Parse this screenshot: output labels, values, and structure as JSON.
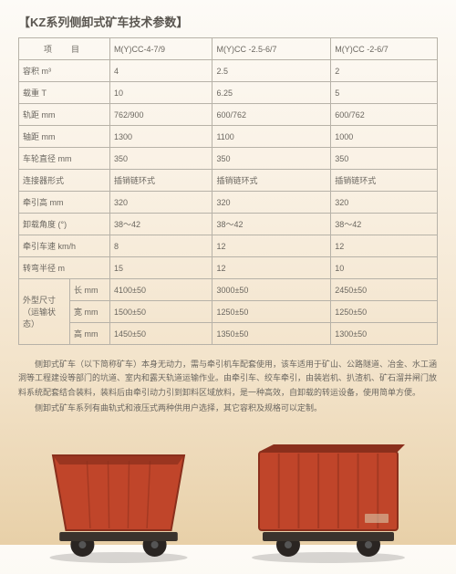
{
  "title": "【KZ系列侧卸式矿车技术参数】",
  "header": {
    "item_label": "项　目",
    "models": [
      "M(Y)CC-4-7/9",
      "M(Y)CC -2.5-6/7",
      "M(Y)CC -2-6/7"
    ]
  },
  "rows": [
    {
      "label": "容积 m³",
      "vals": [
        "4",
        "2.5",
        "2"
      ]
    },
    {
      "label": "载重 T",
      "vals": [
        "10",
        "6.25",
        "5"
      ]
    },
    {
      "label": "轨距 mm",
      "vals": [
        "762/900",
        "600/762",
        "600/762"
      ]
    },
    {
      "label": "轴距 mm",
      "vals": [
        "1300",
        "1100",
        "1000"
      ]
    },
    {
      "label": "车轮直径 mm",
      "vals": [
        "350",
        "350",
        "350"
      ]
    },
    {
      "label": "连接器形式",
      "vals": [
        "插销链环式",
        "插销链环式",
        "插销链环式"
      ]
    },
    {
      "label": "牵引高 mm",
      "vals": [
        "320",
        "320",
        "320"
      ]
    },
    {
      "label": "卸载角度 (°)",
      "vals": [
        "38～42",
        "38～42",
        "38～42"
      ]
    },
    {
      "label": "牵引车速 km/h",
      "vals": [
        "8",
        "12",
        "12"
      ]
    },
    {
      "label": "转弯半径 m",
      "vals": [
        "15",
        "12",
        "10"
      ]
    }
  ],
  "dims": {
    "group_label": "外型尺寸\n（运输状态）",
    "rows": [
      {
        "label": "长 mm",
        "vals": [
          "4100±50",
          "3000±50",
          "2450±50"
        ]
      },
      {
        "label": "宽 mm",
        "vals": [
          "1500±50",
          "1250±50",
          "1250±50"
        ]
      },
      {
        "label": "高 mm",
        "vals": [
          "1450±50",
          "1350±50",
          "1300±50"
        ]
      }
    ]
  },
  "description": [
    "侧卸式矿车（以下简称矿车）本身无动力，需与牵引机车配套使用，该车适用于矿山、公路隧道、冶金、水工涵洞等工程建设等部门的坑道、室内和露天轨道运输作业。由牵引车、绞车牵引，由装岩机、扒渣机、矿石溜井闸门放料系统配套结合装料，装料后由牵引动力引到卸料区域放料，是一种高效，自卸载的转运设备，使用简单方便。",
    "侧卸式矿车系列有曲轨式和液压式两种供用户选择，其它容积及规格可以定制。"
  ],
  "colors": {
    "cart": "#c0452a",
    "cart_dark": "#8a2f1c",
    "wheel": "#2a2522",
    "rail": "#6a5f55"
  }
}
